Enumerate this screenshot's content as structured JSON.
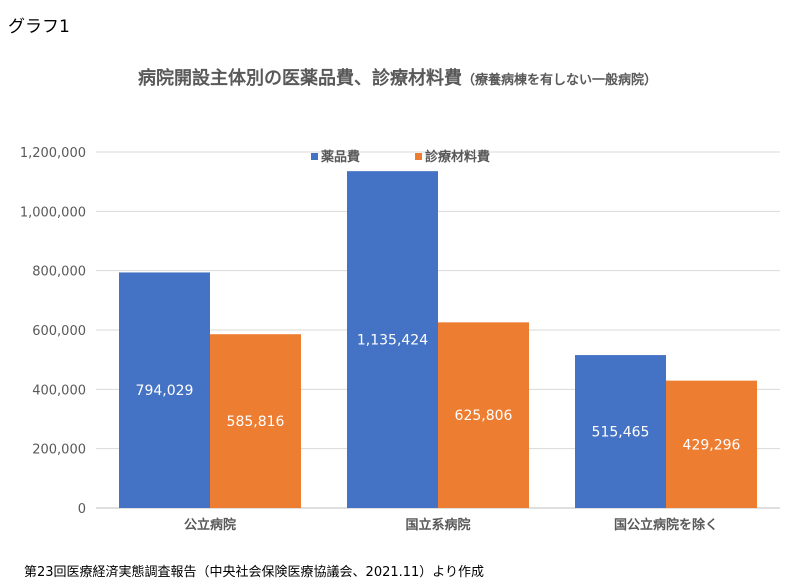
{
  "heading": "グラフ1",
  "source": "第23回医療経済実態調査報告（中央社会保険医療協議会、2021.11）より作成",
  "chart_data": {
    "type": "bar",
    "title": "病院開設主体別の医薬品費、診療材料費",
    "subtitle": "（療養病棟を有しない一般病院）",
    "categories": [
      "公立病院",
      "国立系病院",
      "国公立病院を除く"
    ],
    "series": [
      {
        "name": "薬品費",
        "color": "#4472C4",
        "values": [
          794029,
          1135424,
          515465
        ],
        "labels": [
          "794,029",
          "1,135,424",
          "515,465"
        ]
      },
      {
        "name": "診療材料費",
        "color": "#ED7D31",
        "values": [
          585816,
          625806,
          429296
        ],
        "labels": [
          "585,816",
          "625,806",
          "429,296"
        ]
      }
    ],
    "yticks": [
      0,
      200000,
      400000,
      600000,
      800000,
      1000000,
      1200000
    ],
    "ytick_labels": [
      "0",
      "200,000",
      "400,000",
      "600,000",
      "800,000",
      "1,000,000",
      "1,200,000"
    ],
    "ylim": [
      0,
      1200000
    ],
    "grid": true,
    "legend": "top-center",
    "xlabel": "",
    "ylabel": ""
  }
}
